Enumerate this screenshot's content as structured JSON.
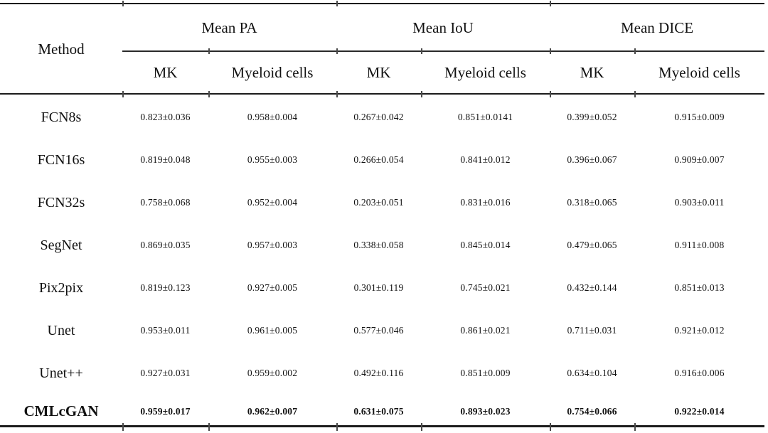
{
  "table": {
    "method_header": "Method",
    "groups": [
      {
        "label": "Mean PA"
      },
      {
        "label": "Mean IoU"
      },
      {
        "label": "Mean DICE"
      }
    ],
    "sub_headers": [
      "MK",
      "Myeloid cells",
      "MK",
      "Myeloid cells",
      "MK",
      "Myeloid cells"
    ],
    "rows": [
      {
        "method": "FCN8s",
        "bold": false,
        "values": [
          "0.823±0.036",
          "0.958±0.004",
          "0.267±0.042",
          "0.851±0.0141",
          "0.399±0.052",
          "0.915±0.009"
        ]
      },
      {
        "method": "FCN16s",
        "bold": false,
        "values": [
          "0.819±0.048",
          "0.955±0.003",
          "0.266±0.054",
          "0.841±0.012",
          "0.396±0.067",
          "0.909±0.007"
        ]
      },
      {
        "method": "FCN32s",
        "bold": false,
        "values": [
          "0.758±0.068",
          "0.952±0.004",
          "0.203±0.051",
          "0.831±0.016",
          "0.318±0.065",
          "0.903±0.011"
        ]
      },
      {
        "method": "SegNet",
        "bold": false,
        "values": [
          "0.869±0.035",
          "0.957±0.003",
          "0.338±0.058",
          "0.845±0.014",
          "0.479±0.065",
          "0.911±0.008"
        ]
      },
      {
        "method": "Pix2pix",
        "bold": false,
        "values": [
          "0.819±0.123",
          "0.927±0.005",
          "0.301±0.119",
          "0.745±0.021",
          "0.432±0.144",
          "0.851±0.013"
        ]
      },
      {
        "method": "Unet",
        "bold": false,
        "values": [
          "0.953±0.011",
          "0.961±0.005",
          "0.577±0.046",
          "0.861±0.021",
          "0.711±0.031",
          "0.921±0.012"
        ]
      },
      {
        "method": "Unet++",
        "bold": false,
        "values": [
          "0.927±0.031",
          "0.959±0.002",
          "0.492±0.116",
          "0.851±0.009",
          "0.634±0.104",
          "0.916±0.006"
        ]
      },
      {
        "method": "CMLcGAN",
        "bold": true,
        "values": [
          "0.959±0.017",
          "0.962±0.007",
          "0.631±0.075",
          "0.893±0.023",
          "0.754±0.066",
          "0.922±0.014"
        ]
      }
    ]
  },
  "colors": {
    "text": "#111111",
    "rule": "#1c1c1c",
    "background": "#ffffff"
  }
}
